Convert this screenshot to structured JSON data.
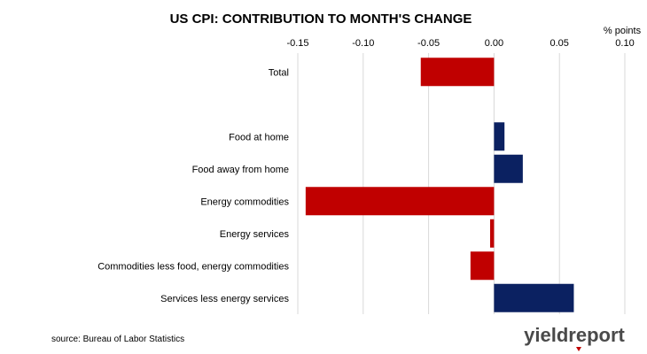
{
  "chart_data": {
    "type": "bar",
    "orientation": "horizontal",
    "title": "US CPI: CONTRIBUTION TO MONTH'S CHANGE",
    "unit_label": "% points",
    "xlim": [
      -0.15,
      0.1
    ],
    "ticks": [
      "-0.15",
      "-0.10",
      "-0.05",
      "0.00",
      "0.05",
      "0.10"
    ],
    "tick_values": [
      -0.15,
      -0.1,
      -0.05,
      0.0,
      0.05,
      0.1
    ],
    "grid": "vertical",
    "categories": [
      "Total",
      "",
      "Food at home",
      "Food away from home",
      "Energy commodities",
      "Energy services",
      "Commodities less food, energy commodities",
      "Services less energy services"
    ],
    "values": [
      -0.056,
      null,
      0.008,
      0.022,
      -0.144,
      -0.003,
      -0.018,
      0.061
    ],
    "colors": {
      "negative": "#c00000",
      "positive": "#0b2161",
      "grid": "#d9d9d9"
    }
  },
  "footer": {
    "source": "source: Bureau of Labor Statistics",
    "logo": "yieldreport"
  }
}
